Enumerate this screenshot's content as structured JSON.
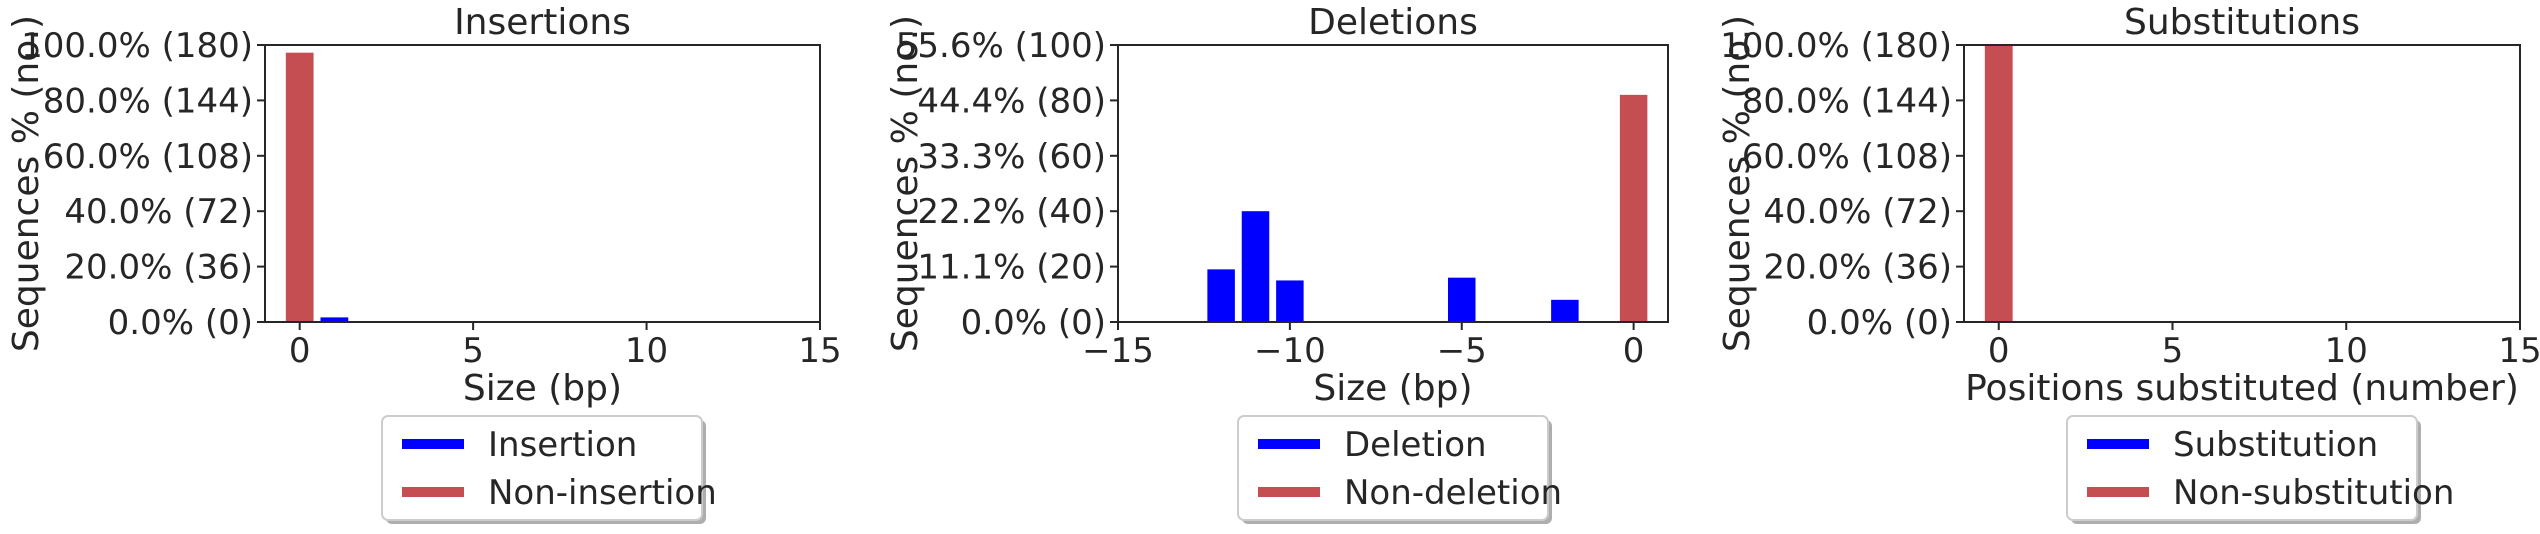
{
  "chart_data": [
    {
      "type": "bar",
      "title": "Insertions",
      "xlabel": "Size (bp)",
      "ylabel": "Sequences % (no.)",
      "xlim": [
        -1,
        15
      ],
      "ylim": [
        0,
        180
      ],
      "x_ticks": [
        "0",
        "5",
        "10",
        "15"
      ],
      "y_ticks": [
        "0.0% (0)",
        "20.0% (36)",
        "40.0% (72)",
        "60.0% (108)",
        "80.0% (144)",
        "100.0% (180)"
      ],
      "grid": false,
      "legend_position": "bottom",
      "series": [
        {
          "name": "Insertion",
          "color": "#0000ff",
          "x": [
            1
          ],
          "values": [
            3
          ]
        },
        {
          "name": "Non-insertion",
          "color": "#c44e52",
          "x": [
            0
          ],
          "values": [
            175
          ]
        }
      ]
    },
    {
      "type": "bar",
      "title": "Deletions",
      "xlabel": "Size (bp)",
      "ylabel": "Sequences % (no.)",
      "xlim": [
        -15,
        1
      ],
      "ylim": [
        0,
        100
      ],
      "x_ticks": [
        "−15",
        "−10",
        "−5",
        "0"
      ],
      "y_ticks": [
        "0.0% (0)",
        "11.1% (20)",
        "22.2% (40)",
        "33.3% (60)",
        "44.4% (80)",
        "55.6% (100)"
      ],
      "grid": false,
      "legend_position": "bottom",
      "series": [
        {
          "name": "Deletion",
          "color": "#0000ff",
          "x": [
            -12,
            -11,
            -10,
            -5,
            -2
          ],
          "values": [
            19,
            40,
            15,
            16,
            8
          ]
        },
        {
          "name": "Non-deletion",
          "color": "#c44e52",
          "x": [
            0
          ],
          "values": [
            82
          ]
        }
      ]
    },
    {
      "type": "bar",
      "title": "Substitutions",
      "xlabel": "Positions substituted (number)",
      "ylabel": "Sequences % (no.)",
      "xlim": [
        -1,
        15
      ],
      "ylim": [
        0,
        180
      ],
      "x_ticks": [
        "0",
        "5",
        "10",
        "15"
      ],
      "y_ticks": [
        "0.0% (0)",
        "20.0% (36)",
        "40.0% (72)",
        "60.0% (108)",
        "80.0% (144)",
        "100.0% (180)"
      ],
      "grid": false,
      "legend_position": "bottom",
      "series": [
        {
          "name": "Substitution",
          "color": "#0000ff",
          "x": [],
          "values": []
        },
        {
          "name": "Non-substitution",
          "color": "#c44e52",
          "x": [
            0
          ],
          "values": [
            180
          ]
        }
      ]
    }
  ]
}
